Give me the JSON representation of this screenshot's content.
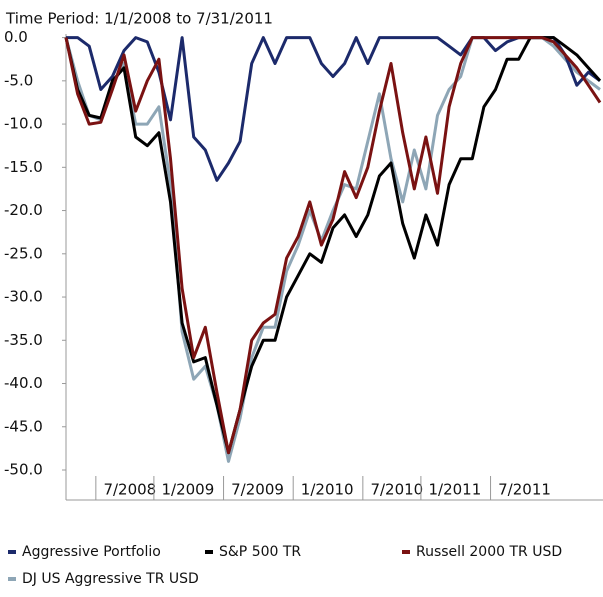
{
  "chart_data": {
    "type": "line",
    "title": "Time Period: 1/1/2008 to 7/31/2011",
    "categories": [
      null,
      null,
      null,
      null,
      null,
      "7/2008",
      null,
      null,
      null,
      null,
      "1/2009",
      null,
      null,
      null,
      null,
      null,
      "7/2009",
      null,
      null,
      null,
      null,
      null,
      "1/2010",
      null,
      null,
      null,
      null,
      null,
      "7/2010",
      null,
      null,
      null,
      null,
      "1/2011",
      null,
      null,
      null,
      null,
      null,
      "7/2011",
      null,
      null,
      null,
      null,
      null,
      null,
      null
    ],
    "series": [
      {
        "name": "Aggressive Portfolio",
        "color": "#1c2a6b",
        "values": [
          0,
          0,
          -1,
          -6,
          -4.5,
          -1.5,
          0,
          -0.5,
          -4,
          -9.5,
          0,
          -11.5,
          -13,
          -16.5,
          -14.5,
          -12,
          -3,
          0,
          -3,
          0,
          0,
          0,
          -3,
          -4.5,
          -3,
          0,
          -3,
          0,
          0,
          0,
          0,
          0,
          0,
          -1,
          -2,
          0,
          0,
          -1.5,
          -0.5,
          0,
          0,
          0,
          0,
          -2,
          -5.5,
          -4,
          -5
        ]
      },
      {
        "name": "S&P 500 TR",
        "color": "#000000",
        "values": [
          0,
          -6,
          -9,
          -9.3,
          -5,
          -3.5,
          -11.5,
          -12.5,
          -11,
          -19,
          -33,
          -37.5,
          -37,
          -42.5,
          -48,
          -43,
          -38,
          -35,
          -35,
          -30,
          -27.5,
          -25,
          -26,
          -22,
          -20.5,
          -23,
          -20.5,
          -16,
          -14.5,
          -21.5,
          -25.5,
          -20.5,
          -24,
          -17,
          -14,
          -14,
          -8,
          -6,
          -2.5,
          -2.5,
          0,
          0,
          0,
          -1,
          -2,
          -3.5,
          -5
        ]
      },
      {
        "name": "Russell 2000 TR USD",
        "color": "#7a1212",
        "values": [
          0,
          -6.5,
          -10,
          -9.8,
          -6,
          -2,
          -8.5,
          -5,
          -2.5,
          -14,
          -29,
          -37,
          -33.5,
          -41,
          -48,
          -43,
          -35,
          -33,
          -32,
          -25.5,
          -23,
          -19,
          -24,
          -21,
          -15.5,
          -18.5,
          -15,
          -8.5,
          -3,
          -11,
          -17.5,
          -11.5,
          -18,
          -8,
          -3,
          0,
          0,
          0,
          0,
          0,
          0,
          0,
          -0.5,
          -2,
          -3.5,
          -5.5,
          -7.5
        ]
      },
      {
        "name": "DJ US Aggressive TR USD",
        "color": "#8ea6b6",
        "values": [
          0,
          -5,
          -9,
          -9.5,
          -5.5,
          -3,
          -10,
          -10,
          -8,
          -17,
          -34,
          -39.5,
          -38,
          -42.5,
          -49,
          -44,
          -37,
          -33.5,
          -33.5,
          -27,
          -24,
          -20,
          -23.5,
          -20,
          -17,
          -17.5,
          -12,
          -6.5,
          -14,
          -19,
          -13,
          -17.5,
          -9,
          -6,
          -4.5,
          0,
          0,
          0,
          0,
          0,
          0,
          0,
          -1,
          -2.5,
          -4,
          -5,
          -6
        ]
      }
    ],
    "ylim": [
      -50,
      0.3
    ],
    "yticks": [
      {
        "value": 0,
        "label": "0.0"
      },
      {
        "value": -5,
        "label": "-5.0"
      },
      {
        "value": -10,
        "label": "-10.0"
      },
      {
        "value": -15,
        "label": "-15.0"
      },
      {
        "value": -20,
        "label": "-20.0"
      },
      {
        "value": -25,
        "label": "-25.0"
      },
      {
        "value": -30,
        "label": "-30.0"
      },
      {
        "value": -35,
        "label": "-35.0"
      },
      {
        "value": -40,
        "label": "-40.0"
      },
      {
        "value": -45,
        "label": "-45.0"
      },
      {
        "value": -50,
        "label": "-50.0"
      }
    ]
  }
}
